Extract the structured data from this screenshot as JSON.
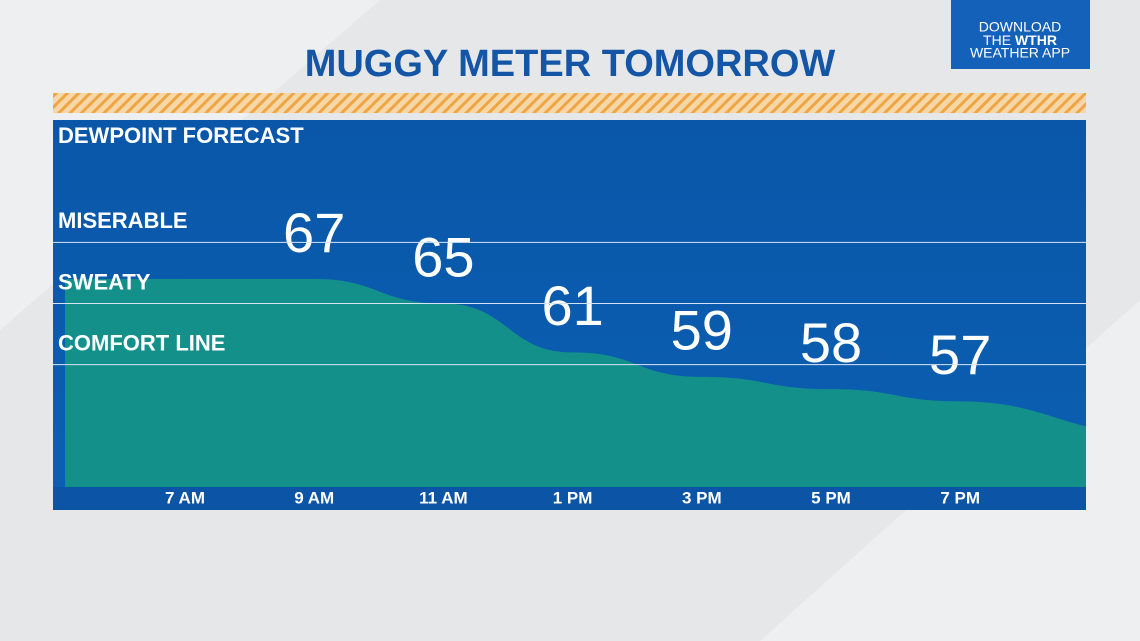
{
  "badge": {
    "line1": "DOWNLOAD",
    "line2a": "THE",
    "line2b": "WTHR",
    "line3": "WEATHER APP"
  },
  "chart_data": {
    "type": "area",
    "title": "MUGGY METER TOMORROW",
    "subtitle": "DEWPOINT FORECAST",
    "categories": [
      "7 AM",
      "9 AM",
      "11 AM",
      "1 PM",
      "3 PM",
      "5 PM",
      "7 PM"
    ],
    "values": [
      67,
      67,
      65,
      61,
      59,
      58,
      57
    ],
    "value_labels": [
      null,
      "67",
      "65",
      "61",
      "59",
      "58",
      "57"
    ],
    "color": "#14908a",
    "ylim": [
      50,
      80
    ],
    "thresholds": [
      {
        "label": "MISERABLE",
        "value": 70
      },
      {
        "label": "SWEATY",
        "value": 65
      },
      {
        "label": "COMFORT LINE",
        "value": 60
      }
    ]
  }
}
